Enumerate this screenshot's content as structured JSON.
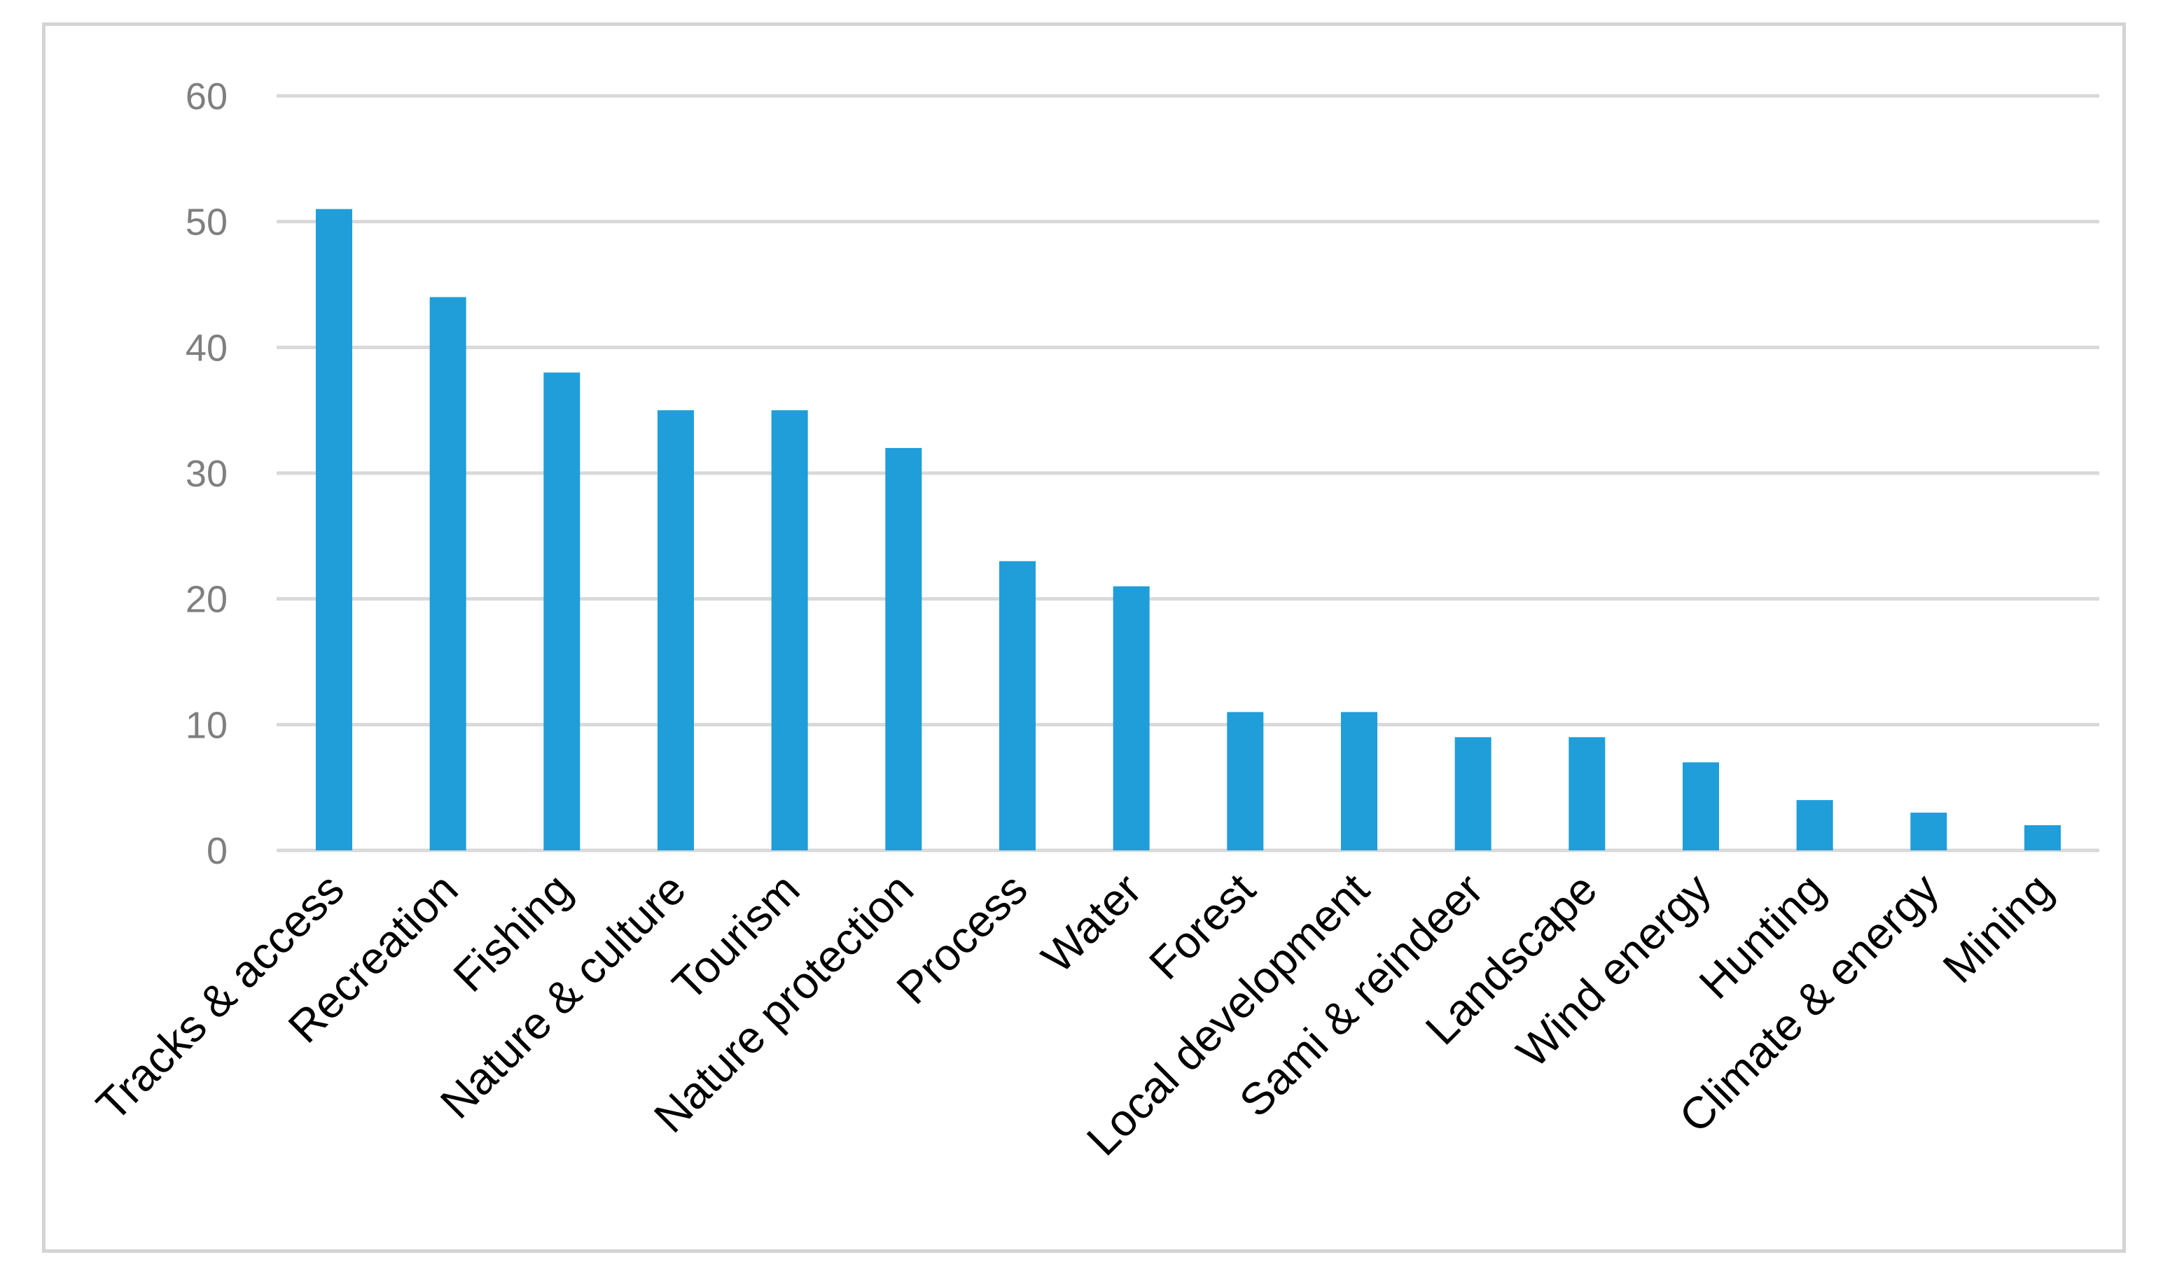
{
  "chart_data": {
    "type": "bar",
    "title": "",
    "xlabel": "",
    "ylabel": "",
    "categories": [
      "Tracks & access",
      "Recreation",
      "Fishing",
      "Nature & culture",
      "Tourism",
      "Nature protection",
      "Process",
      "Water",
      "Forest",
      "Local development",
      "Sami & reindeer",
      "Landscape",
      "Wind energy",
      "Hunting",
      "Climate & energy",
      "Mining"
    ],
    "values": [
      51,
      44,
      38,
      35,
      35,
      32,
      23,
      21,
      11,
      11,
      9,
      9,
      7,
      4,
      3,
      2
    ],
    "ylim": [
      0,
      60
    ],
    "yticks": [
      0,
      10,
      20,
      30,
      40,
      50,
      60
    ],
    "grid": true,
    "legend": "none",
    "bar_color": "#1f9ed9",
    "grid_color": "#d9d9d9",
    "y_tick_color": "#7f7f7f",
    "x_tick_color": "#000000"
  }
}
